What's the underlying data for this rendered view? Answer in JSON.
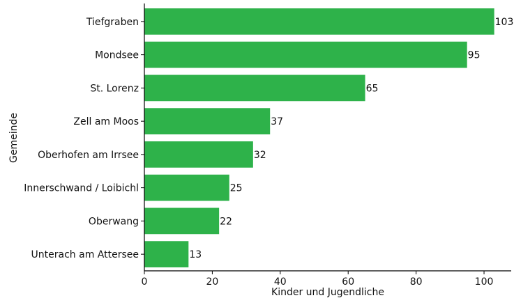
{
  "chart_data": {
    "type": "bar",
    "orientation": "horizontal",
    "categories": [
      "Tiefgraben",
      "Mondsee",
      "St. Lorenz",
      "Zell am Moos",
      "Oberhofen am Irrsee",
      "Innerschwand / Loibichl",
      "Oberwang",
      "Unterach am Attersee"
    ],
    "values": [
      103,
      95,
      65,
      37,
      32,
      25,
      22,
      13
    ],
    "xlabel": "Kinder und Jugendliche",
    "ylabel": "Gemeinde",
    "xlim": [
      0,
      108
    ],
    "xticks": [
      0,
      20,
      40,
      60,
      80,
      100
    ],
    "bar_color": "#2eb24a",
    "grid": false,
    "data_labels": true
  }
}
